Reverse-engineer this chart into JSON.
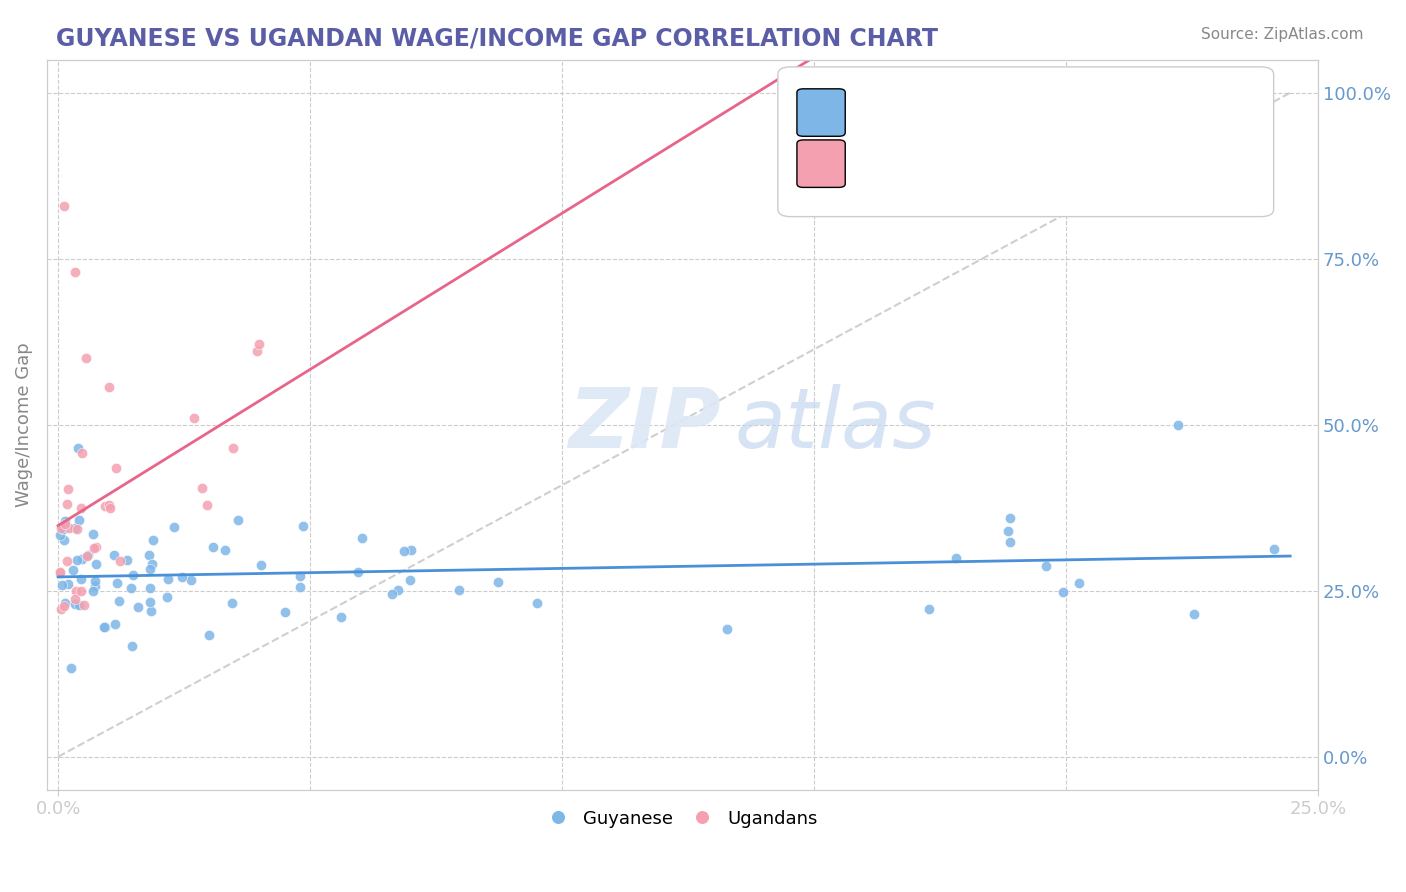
{
  "title": "GUYANESE VS UGANDAN WAGE/INCOME GAP CORRELATION CHART",
  "source": "Source: ZipAtlas.com",
  "ylabel": "Wage/Income Gap",
  "right_yticklabels": [
    "0.0%",
    "25.0%",
    "50.0%",
    "75.0%",
    "100.0%"
  ],
  "blue_color": "#7EB6E8",
  "pink_color": "#F4A0B0",
  "title_color": "#5B5EA6",
  "axis_label_color": "#6699CC",
  "trend_blue": "#4a90d9",
  "trend_pink": "#e8658a",
  "grid_color": "#cccccc",
  "ref_line_color": "#bbbbbb"
}
